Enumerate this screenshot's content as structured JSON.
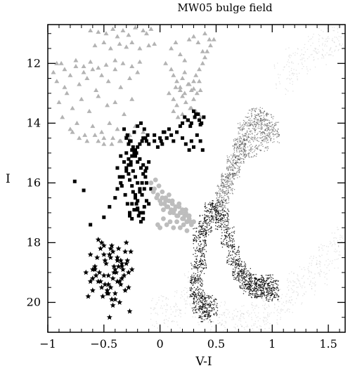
{
  "chart_data": {
    "type": "scatter",
    "title": "MW05 bulge field",
    "xlabel": "V-I",
    "ylabel": "I",
    "xlim": [
      -1.0,
      1.65
    ],
    "ylim": [
      21.0,
      10.7
    ],
    "y_inverted": true,
    "x_ticks": [
      -1,
      -0.5,
      0,
      0.5,
      1,
      1.5
    ],
    "x_tick_labels": [
      "−1",
      "−0.5",
      "0",
      "0.5",
      "1",
      "1.5"
    ],
    "y_ticks": [
      12,
      14,
      16,
      18,
      20
    ],
    "y_tick_labels": [
      "12",
      "14",
      "16",
      "18",
      "20"
    ],
    "grid": false,
    "legend": "none",
    "colors": {
      "axes": "#000000",
      "triangles": "#b3b3b3",
      "grey_circles": "#bdbdbd",
      "black_squares": "#000000",
      "stars": "#000000",
      "field_dense": "#000000",
      "field_light": "#9a9a9a"
    },
    "series": [
      {
        "marker": "triangle",
        "color": "#b3b3b3",
        "x": [
          -0.62,
          -0.55,
          -0.48,
          -0.42,
          -0.38,
          -0.33,
          -0.28,
          -0.22,
          -0.15,
          -0.12,
          -0.08,
          -0.58,
          -0.5,
          -0.44,
          -0.36,
          -0.3,
          -0.25,
          -0.18,
          -0.1,
          -0.05,
          -0.95,
          -0.92,
          -0.88,
          -0.85,
          -0.8,
          -0.75,
          -0.72,
          -0.68,
          -0.65,
          -0.6,
          -0.57,
          -0.52,
          -0.46,
          -0.4,
          -0.35,
          -0.27,
          -0.2,
          -0.9,
          -0.83,
          -0.78,
          -0.7,
          -0.63,
          -0.55,
          -0.47,
          -0.4,
          -0.32,
          -0.25,
          -0.87,
          -0.8,
          -0.74,
          -0.67,
          -0.6,
          -0.52,
          -0.45,
          -0.38,
          -0.3,
          -0.22,
          -0.15,
          -0.55,
          -0.5,
          -0.43,
          -0.36,
          -0.28,
          -0.78,
          -0.72,
          -0.65,
          -0.58,
          -0.5,
          -0.42,
          -0.35,
          -0.27,
          -0.92,
          -0.85,
          -0.75,
          -0.68,
          -0.62,
          -0.55,
          -0.48,
          -0.4,
          -0.33,
          -0.25,
          -0.18,
          0.05,
          0.1,
          0.12,
          0.15,
          0.18,
          0.2,
          0.22,
          0.25,
          0.28,
          0.3,
          0.32,
          0.35,
          0.38,
          0.4,
          0.42,
          0.45,
          0.48,
          0.08,
          0.12,
          0.15,
          0.2,
          0.23,
          0.27,
          0.3,
          0.33,
          0.36,
          0.1,
          0.14,
          0.18,
          0.22,
          0.26,
          0.3,
          0.34,
          0.38,
          0.12,
          0.16,
          0.2,
          0.24,
          0.28,
          0.32,
          0.36,
          0.4,
          0.44,
          0.14,
          0.18,
          0.22,
          0.26,
          0.3,
          0.35
        ],
        "y": [
          10.9,
          10.95,
          11.0,
          10.85,
          11.1,
          10.9,
          11.05,
          10.8,
          10.9,
          11.0,
          10.85,
          11.4,
          11.3,
          11.5,
          11.35,
          11.45,
          11.3,
          11.5,
          11.4,
          11.35,
          12.3,
          12.6,
          12.0,
          12.8,
          12.4,
          12.1,
          12.7,
          12.3,
          12.5,
          12.2,
          12.9,
          12.4,
          12.6,
          12.2,
          12.8,
          12.5,
          12.3,
          13.3,
          13.0,
          13.5,
          13.2,
          13.6,
          13.1,
          13.4,
          13.3,
          13.7,
          13.2,
          13.8,
          14.2,
          14.0,
          14.4,
          14.1,
          14.3,
          14.0,
          14.2,
          14.4,
          14.1,
          14.3,
          14.6,
          14.5,
          14.7,
          14.6,
          14.5,
          14.3,
          14.5,
          14.6,
          14.4,
          14.7,
          14.5,
          14.6,
          14.4,
          12.0,
          12.2,
          11.9,
          12.1,
          11.95,
          12.15,
          12.05,
          11.9,
          12.0,
          12.1,
          11.95,
          12.0,
          12.2,
          12.4,
          12.6,
          12.8,
          12.5,
          12.3,
          12.7,
          12.9,
          12.6,
          12.4,
          12.2,
          12.0,
          11.8,
          11.6,
          11.4,
          11.2,
          13.0,
          13.2,
          13.4,
          13.1,
          13.3,
          13.5,
          13.2,
          13.0,
          12.9,
          11.5,
          11.3,
          11.7,
          11.9,
          11.2,
          11.1,
          11.3,
          11.6,
          13.6,
          13.8,
          13.7,
          13.9,
          13.5,
          13.6,
          13.8,
          11.0,
          11.2,
          12.8,
          12.9,
          13.0,
          12.7,
          12.85,
          12.6
        ]
      },
      {
        "marker": "square",
        "color": "#000000",
        "x": [
          -0.76,
          -0.68,
          -0.62,
          -0.5,
          -0.45,
          -0.4,
          -0.38,
          -0.35,
          -0.33,
          -0.3,
          -0.28,
          -0.26,
          -0.25,
          -0.23,
          -0.22,
          -0.2,
          -0.18,
          -0.16,
          -0.15,
          -0.13,
          -0.12,
          -0.1,
          -0.35,
          -0.32,
          -0.3,
          -0.28,
          -0.27,
          -0.25,
          -0.24,
          -0.22,
          -0.21,
          -0.2,
          -0.19,
          -0.17,
          -0.15,
          -0.14,
          -0.12,
          -0.38,
          -0.36,
          -0.34,
          -0.31,
          -0.29,
          -0.27,
          -0.25,
          -0.23,
          -0.2,
          -0.18,
          -0.16,
          -0.13,
          -0.3,
          -0.28,
          -0.26,
          -0.24,
          -0.22,
          -0.2,
          -0.18,
          -0.16,
          -0.14,
          -0.12,
          -0.28,
          -0.25,
          -0.22,
          -0.2,
          -0.17,
          -0.15,
          -0.12,
          -0.1,
          -0.3,
          -0.27,
          -0.24,
          -0.21,
          -0.18,
          -0.15,
          -0.13,
          -0.32,
          -0.29,
          -0.26,
          -0.23,
          -0.2,
          -0.17,
          -0.14,
          -0.11,
          -0.05,
          0.0,
          0.02,
          0.04,
          0.06,
          0.08,
          0.1,
          0.12,
          0.15,
          0.18,
          0.2,
          0.22,
          0.25,
          0.27,
          0.3,
          0.32,
          0.35,
          0.37,
          0.39,
          0.2,
          0.23,
          0.26,
          0.28,
          0.3,
          0.33,
          0.36,
          0.38,
          0.25,
          0.28,
          0.31,
          0.34,
          0.36,
          -0.05,
          -0.02,
          0.01,
          0.03,
          0.06,
          -0.1,
          -0.08,
          -0.15,
          -0.18,
          -0.2,
          -0.22,
          -0.25,
          -0.27
        ],
        "y": [
          15.95,
          16.25,
          17.4,
          17.15,
          16.8,
          16.5,
          16.2,
          16.0,
          15.8,
          15.6,
          15.4,
          15.3,
          15.1,
          15.0,
          14.9,
          14.8,
          14.7,
          14.6,
          14.5,
          14.5,
          14.6,
          14.7,
          15.1,
          15.3,
          15.5,
          15.7,
          15.9,
          16.1,
          16.3,
          16.5,
          16.7,
          16.9,
          17.1,
          17.3,
          17.0,
          16.8,
          16.6,
          15.5,
          15.8,
          16.1,
          16.4,
          16.7,
          17.0,
          17.2,
          16.9,
          16.6,
          16.3,
          16.0,
          15.8,
          15.0,
          15.2,
          15.4,
          15.6,
          15.8,
          16.0,
          16.2,
          16.4,
          16.2,
          16.0,
          14.7,
          14.9,
          15.1,
          15.3,
          15.5,
          15.7,
          15.5,
          15.3,
          14.5,
          14.6,
          14.8,
          15.0,
          15.2,
          15.4,
          15.6,
          14.2,
          14.4,
          14.6,
          14.3,
          14.1,
          14.0,
          14.2,
          14.4,
          14.6,
          14.5,
          14.7,
          14.3,
          14.5,
          14.2,
          14.4,
          14.6,
          14.3,
          14.1,
          14.0,
          13.8,
          13.9,
          14.1,
          13.6,
          13.7,
          13.9,
          14.0,
          13.8,
          14.5,
          14.7,
          14.9,
          14.6,
          14.8,
          14.4,
          14.6,
          14.9,
          13.9,
          14.0,
          13.8,
          13.7,
          14.05,
          14.4,
          14.8,
          14.6,
          14.3,
          14.5,
          16.7,
          16.2,
          17.2,
          17.0,
          16.85,
          16.4,
          16.7,
          17.1
        ]
      },
      {
        "marker": "circle",
        "color": "#bdbdbd",
        "x": [
          -0.08,
          -0.05,
          -0.02,
          0.0,
          0.02,
          0.04,
          0.06,
          0.08,
          0.1,
          0.12,
          0.14,
          0.16,
          0.18,
          0.2,
          0.22,
          0.24,
          0.26,
          0.28,
          0.3,
          -0.06,
          -0.03,
          0.01,
          0.03,
          0.05,
          0.07,
          0.09,
          0.11,
          0.13,
          0.15,
          0.17,
          0.19,
          0.21,
          0.23,
          0.25,
          0.27,
          -0.04,
          -0.01,
          0.02,
          0.05,
          0.08,
          0.11,
          0.14,
          0.17,
          0.2,
          0.23,
          0.26,
          -0.02,
          0.0,
          0.03,
          0.06,
          0.09,
          0.12,
          0.15,
          0.18,
          0.21,
          0.24
        ],
        "y": [
          16.0,
          16.2,
          16.4,
          16.6,
          16.5,
          16.7,
          16.8,
          16.6,
          16.9,
          17.0,
          16.8,
          17.1,
          17.0,
          17.2,
          17.1,
          17.3,
          17.2,
          17.4,
          17.3,
          16.3,
          16.5,
          16.7,
          16.9,
          16.6,
          16.8,
          17.0,
          16.7,
          16.9,
          17.1,
          16.8,
          17.0,
          17.2,
          16.9,
          17.1,
          17.3,
          15.9,
          16.1,
          16.3,
          16.5,
          16.4,
          16.6,
          16.8,
          16.7,
          16.9,
          17.0,
          17.1,
          17.4,
          17.5,
          17.2,
          17.4,
          17.3,
          17.5,
          17.3,
          17.5,
          17.4,
          17.6
        ]
      },
      {
        "marker": "star",
        "color": "#000000",
        "x": [
          -0.66,
          -0.62,
          -0.6,
          -0.58,
          -0.55,
          -0.53,
          -0.5,
          -0.48,
          -0.46,
          -0.44,
          -0.42,
          -0.4,
          -0.38,
          -0.36,
          -0.34,
          -0.32,
          -0.3,
          -0.28,
          -0.26,
          -0.64,
          -0.6,
          -0.56,
          -0.52,
          -0.5,
          -0.47,
          -0.45,
          -0.43,
          -0.41,
          -0.39,
          -0.37,
          -0.35,
          -0.33,
          -0.31,
          -0.29,
          -0.62,
          -0.58,
          -0.54,
          -0.51,
          -0.49,
          -0.46,
          -0.44,
          -0.42,
          -0.4,
          -0.38,
          -0.36,
          -0.34,
          -0.6,
          -0.57,
          -0.53,
          -0.5,
          -0.47,
          -0.44,
          -0.41,
          -0.38,
          -0.35,
          -0.55,
          -0.52,
          -0.49,
          -0.46,
          -0.43,
          -0.4,
          -0.37,
          -0.34,
          -0.31,
          -0.28,
          -0.25,
          -0.45,
          -0.42,
          -0.3,
          -0.27
        ],
        "y": [
          19.0,
          18.4,
          19.6,
          18.9,
          19.3,
          18.2,
          19.1,
          18.7,
          19.4,
          18.5,
          19.2,
          18.9,
          18.6,
          19.3,
          18.8,
          19.1,
          18.7,
          19.0,
          18.3,
          19.8,
          19.2,
          18.5,
          19.5,
          18.1,
          19.7,
          18.4,
          19.9,
          18.8,
          19.0,
          18.2,
          19.4,
          18.9,
          19.6,
          18.6,
          19.3,
          18.8,
          19.0,
          19.8,
          18.6,
          19.1,
          19.5,
          18.3,
          19.7,
          18.5,
          20.0,
          18.7,
          18.9,
          19.1,
          19.3,
          18.4,
          19.6,
          18.2,
          19.0,
          19.3,
          18.6,
          17.9,
          18.0,
          19.4,
          19.7,
          18.1,
          19.9,
          18.8,
          19.2,
          18.3,
          19.5,
          18.9,
          20.5,
          20.1,
          18.0,
          20.3
        ]
      }
    ],
    "background_field": [
      {
        "shading": "dense",
        "color": "#000000",
        "note_shape": "main-sequence turnoff and subgiant branch",
        "x": [
          0.35,
          0.4,
          0.45,
          0.5,
          0.55,
          0.6,
          0.65,
          0.7,
          0.75,
          0.8,
          0.85,
          0.9,
          0.95,
          1.0,
          0.35,
          0.33,
          0.32,
          0.34,
          0.4,
          0.45
        ],
        "y": [
          17.8,
          17.4,
          17.0,
          16.9,
          17.2,
          17.8,
          18.4,
          18.9,
          19.2,
          19.4,
          19.5,
          19.5,
          19.4,
          19.6,
          18.5,
          19.0,
          19.5,
          20.0,
          20.3,
          20.1
        ]
      },
      {
        "shading": "medium",
        "color": "#3a3a3a",
        "note_shape": "red giant branch and red clump",
        "x": [
          0.55,
          0.6,
          0.65,
          0.7,
          0.75,
          0.8,
          0.85,
          0.9,
          0.95,
          1.0,
          0.9,
          0.8,
          0.7,
          0.65,
          0.6,
          0.55
        ],
        "y": [
          16.6,
          16.0,
          15.4,
          14.8,
          14.3,
          14.0,
          13.8,
          13.9,
          14.0,
          14.3,
          14.6,
          14.8,
          15.0,
          15.5,
          16.0,
          16.4
        ]
      },
      {
        "shading": "light",
        "color": "#9a9a9a",
        "note_shape": "diffuse disk field stars",
        "x": [
          0.3,
          0.4,
          0.5,
          0.6,
          0.7,
          0.8,
          0.9,
          1.0,
          1.1,
          1.2,
          1.3,
          1.4,
          1.5,
          1.6,
          1.1,
          1.2,
          1.3,
          1.4,
          1.5,
          1.6,
          0.2,
          0.0,
          0.1
        ],
        "y": [
          19.5,
          20.2,
          20.5,
          20.7,
          20.8,
          20.6,
          20.4,
          20.2,
          19.8,
          19.5,
          19.3,
          18.9,
          18.5,
          18.0,
          12.5,
          12.0,
          11.8,
          11.5,
          11.2,
          11.0,
          20.0,
          20.3,
          20.6
        ]
      }
    ]
  }
}
